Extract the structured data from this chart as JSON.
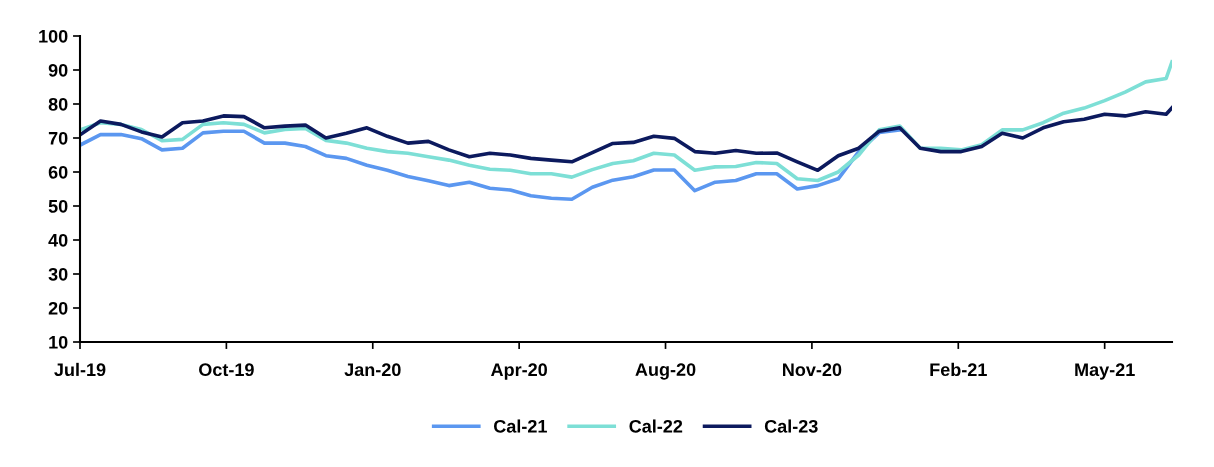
{
  "chart_data": {
    "type": "line",
    "x": [
      "2019-07-01",
      "2019-07-15",
      "2019-07-29",
      "2019-08-12",
      "2019-08-26",
      "2019-09-09",
      "2019-09-23",
      "2019-10-07",
      "2019-10-21",
      "2019-11-04",
      "2019-11-18",
      "2019-12-02",
      "2019-12-16",
      "2019-12-30",
      "2020-01-13",
      "2020-01-27",
      "2020-02-10",
      "2020-02-24",
      "2020-03-09",
      "2020-03-23",
      "2020-04-06",
      "2020-04-20",
      "2020-05-04",
      "2020-05-18",
      "2020-06-01",
      "2020-06-15",
      "2020-06-29",
      "2020-07-13",
      "2020-07-27",
      "2020-08-10",
      "2020-08-24",
      "2020-09-07",
      "2020-09-21",
      "2020-10-05",
      "2020-10-19",
      "2020-11-02",
      "2020-11-16",
      "2020-11-30",
      "2020-12-14",
      "2020-12-28",
      "2021-01-11",
      "2021-01-25",
      "2021-02-08",
      "2021-02-22",
      "2021-03-08",
      "2021-03-22",
      "2021-04-05",
      "2021-04-19",
      "2021-05-03",
      "2021-05-17",
      "2021-05-31",
      "2021-06-14",
      "2021-06-28",
      "2021-07-12",
      "2021-07-16"
    ],
    "series": [
      {
        "name": "Cal-21",
        "color": "#5b97f0",
        "values": [
          67.9,
          71,
          71,
          69.8,
          66.5,
          67,
          71.5,
          72,
          72,
          68.5,
          68.5,
          67.5,
          64.8,
          64,
          62,
          60.5,
          58.7,
          57.4,
          56,
          57,
          55.2,
          54.7,
          53,
          52.3,
          52,
          55.5,
          57.6,
          58.6,
          60.6,
          60.6,
          54.5,
          57,
          57.5,
          59.5,
          59.5,
          55,
          56,
          58,
          66,
          71.6,
          72.4,
          null,
          null,
          null,
          null,
          null,
          null,
          null,
          null,
          null,
          null,
          null,
          null,
          null,
          null
        ]
      },
      {
        "name": "Cal-22",
        "color": "#7ddfd6",
        "values": [
          72.4,
          74.5,
          74,
          72.5,
          69.2,
          69.6,
          74,
          74.5,
          74,
          71.5,
          72.5,
          72.8,
          69.3,
          68.5,
          67,
          66,
          65.5,
          64.5,
          63.5,
          62,
          60.8,
          60.5,
          59.5,
          59.5,
          58.5,
          60.7,
          62.5,
          63.3,
          65.5,
          65,
          60.5,
          61.5,
          61.6,
          62.8,
          62.5,
          58,
          57.5,
          60,
          65,
          72.4,
          73.5,
          67,
          67,
          66.5,
          68,
          72.4,
          72.4,
          74.5,
          77.3,
          78.8,
          81,
          83.5,
          86.5,
          87.5,
          92.4
        ]
      },
      {
        "name": "Cal-23",
        "color": "#0c1a5e",
        "values": [
          70.9,
          75,
          74,
          71.8,
          70.3,
          74.5,
          75,
          76.5,
          76.3,
          73,
          73.5,
          73.8,
          70,
          71.4,
          73,
          70.5,
          68.5,
          69,
          66.5,
          64.5,
          65.5,
          65,
          64,
          63.5,
          63,
          65.7,
          68.4,
          68.7,
          70.5,
          69.9,
          66,
          65.5,
          66.3,
          65.5,
          65.6,
          63,
          60.5,
          64.8,
          67,
          72,
          73,
          67,
          66,
          66,
          67.5,
          71.4,
          70,
          73,
          74.8,
          75.5,
          77,
          76.5,
          77.7,
          77,
          78.9
        ]
      }
    ],
    "xlim": [
      "2019-07-01",
      "2021-07-16"
    ],
    "xticks": [
      {
        "value": "2019-07-01",
        "label": "Jul-19"
      },
      {
        "value": "2019-10-09",
        "label": "Oct-19"
      },
      {
        "value": "2020-01-17",
        "label": "Jan-20"
      },
      {
        "value": "2020-04-26",
        "label": "Apr-20"
      },
      {
        "value": "2020-08-04",
        "label": "Aug-20"
      },
      {
        "value": "2020-11-12",
        "label": "Nov-20"
      },
      {
        "value": "2021-02-20",
        "label": "Feb-21"
      },
      {
        "value": "2021-05-31",
        "label": "May-21"
      }
    ],
    "ylim": [
      10,
      100
    ],
    "yticks": [
      10,
      20,
      30,
      40,
      50,
      60,
      70,
      80,
      90,
      100
    ],
    "grid": false,
    "legend": "bottom",
    "marker": "none",
    "line_style": "solid"
  }
}
